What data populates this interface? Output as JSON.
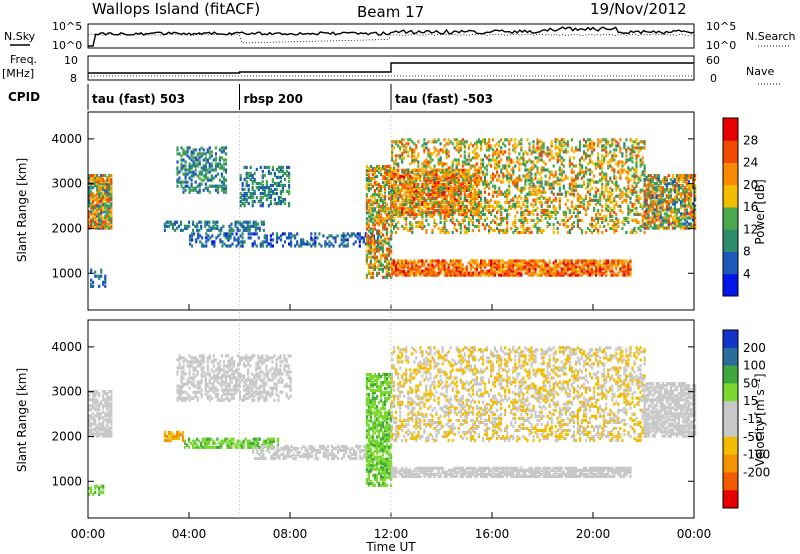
{
  "header": {
    "title": "Wallops Island (fitACF)",
    "beam": "Beam 17",
    "date": "19/Nov/2012"
  },
  "top_panels": {
    "nsky_label": "N.Sky",
    "nsearch_label": "N.Search",
    "nsky_ticks": [
      "10^5",
      "10^0"
    ],
    "nsearch_ticks": [
      "10^5",
      "10^0"
    ],
    "freq_label_line1": "Freq.",
    "freq_label_line2": "[MHz]",
    "freq_ticks": [
      "10",
      "8"
    ],
    "nave_label": "Nave",
    "nave_ticks": [
      "60",
      "0"
    ],
    "cpid_label": "CPID"
  },
  "cpid_segments": [
    {
      "label": "tau (fast) 503",
      "start": 0,
      "end": 6
    },
    {
      "label": "rbsp 200",
      "start": 6,
      "end": 12
    },
    {
      "label": "tau (fast) -503",
      "start": 12,
      "end": 24
    }
  ],
  "colors": {
    "power_scale": [
      "#0016e8",
      "#1e58b8",
      "#2c8c6e",
      "#4aa84e",
      "#f2bc00",
      "#f78a00",
      "#f24a00",
      "#e80000"
    ],
    "velocity_scale": [
      "#e80000",
      "#f25a00",
      "#f49200",
      "#f2bc00",
      "#c8c8c8",
      "#c8c8c8",
      "#7ad830",
      "#3fa83c",
      "#2a6c9c",
      "#1234c8"
    ]
  },
  "chart_data": [
    {
      "type": "heatmap",
      "name": "power-panel",
      "xlabel": "",
      "ylabel": "Slant Range [km]",
      "x_range": [
        0,
        24
      ],
      "y_range": [
        180,
        4600
      ],
      "y_ticks": [
        1000,
        2000,
        3000,
        4000
      ],
      "colorbar": {
        "label": "Power [dB]",
        "ticks": [
          4,
          8,
          12,
          16,
          20,
          24,
          28
        ],
        "range": [
          0,
          32
        ]
      },
      "scatter_bands": [
        {
          "t0": 0.0,
          "t1": 0.9,
          "r0": 2000,
          "r1": 3200,
          "lo": 6,
          "hi": 28,
          "d": 0.75
        },
        {
          "t0": 0.0,
          "t1": 0.7,
          "r0": 700,
          "r1": 1100,
          "lo": 4,
          "hi": 12,
          "d": 0.35
        },
        {
          "t0": 3.5,
          "t1": 5.5,
          "r0": 2800,
          "r1": 3800,
          "lo": 4,
          "hi": 16,
          "d": 0.45
        },
        {
          "t0": 6.0,
          "t1": 8.0,
          "r0": 2500,
          "r1": 3400,
          "lo": 4,
          "hi": 16,
          "d": 0.4
        },
        {
          "t0": 3.0,
          "t1": 7.0,
          "r0": 1950,
          "r1": 2150,
          "lo": 4,
          "hi": 12,
          "d": 0.45
        },
        {
          "t0": 4.0,
          "t1": 11.5,
          "r0": 1600,
          "r1": 1900,
          "lo": 3,
          "hi": 10,
          "d": 0.4
        },
        {
          "t0": 11.0,
          "t1": 12.0,
          "r0": 900,
          "r1": 3400,
          "lo": 8,
          "hi": 28,
          "d": 0.55
        },
        {
          "t0": 12.0,
          "t1": 21.5,
          "r0": 950,
          "r1": 1300,
          "lo": 18,
          "hi": 30,
          "d": 0.75
        },
        {
          "t0": 12.0,
          "t1": 15.5,
          "r0": 2300,
          "r1": 3300,
          "lo": 18,
          "hi": 30,
          "d": 0.6
        },
        {
          "t0": 12.0,
          "t1": 22.0,
          "r0": 1900,
          "r1": 4000,
          "lo": 10,
          "hi": 26,
          "d": 0.35
        },
        {
          "t0": 22.0,
          "t1": 24.0,
          "r0": 2000,
          "r1": 3200,
          "lo": 6,
          "hi": 28,
          "d": 0.7
        }
      ]
    },
    {
      "type": "heatmap",
      "name": "velocity-panel",
      "xlabel": "Time UT",
      "ylabel": "Slant Range [km]",
      "x_range": [
        0,
        24
      ],
      "y_range": [
        180,
        4600
      ],
      "y_ticks": [
        1000,
        2000,
        3000,
        4000
      ],
      "x_ticks": [
        "00:00",
        "04:00",
        "08:00",
        "12:00",
        "16:00",
        "20:00",
        "00:00"
      ],
      "colorbar": {
        "label": "Velocity [m s⁻¹]",
        "ticks": [
          200,
          100,
          50,
          15,
          -15,
          -50,
          -100,
          -200
        ]
      },
      "scatter_bands": [
        {
          "t0": 0.0,
          "t1": 0.9,
          "r0": 2000,
          "r1": 3000,
          "lo": -15,
          "hi": 15,
          "d": 0.6
        },
        {
          "t0": 0.0,
          "t1": 0.6,
          "r0": 700,
          "r1": 900,
          "lo": 20,
          "hi": 60,
          "d": 0.4
        },
        {
          "t0": 3.0,
          "t1": 3.8,
          "r0": 1900,
          "r1": 2100,
          "lo": -80,
          "hi": -30,
          "d": 0.7
        },
        {
          "t0": 3.8,
          "t1": 7.5,
          "r0": 1750,
          "r1": 1950,
          "lo": 20,
          "hi": 60,
          "d": 0.6
        },
        {
          "t0": 3.5,
          "t1": 8.0,
          "r0": 2800,
          "r1": 3800,
          "lo": -15,
          "hi": 15,
          "d": 0.45
        },
        {
          "t0": 6.5,
          "t1": 11.0,
          "r0": 1500,
          "r1": 1800,
          "lo": -15,
          "hi": 15,
          "d": 0.5
        },
        {
          "t0": 11.0,
          "t1": 12.0,
          "r0": 900,
          "r1": 3400,
          "lo": 20,
          "hi": 60,
          "d": 0.6
        },
        {
          "t0": 12.0,
          "t1": 21.5,
          "r0": 1100,
          "r1": 1300,
          "lo": -15,
          "hi": 15,
          "d": 0.75
        },
        {
          "t0": 12.0,
          "t1": 22.0,
          "r0": 1900,
          "r1": 4000,
          "lo": -40,
          "hi": 15,
          "d": 0.35
        },
        {
          "t0": 22.0,
          "t1": 24.0,
          "r0": 2000,
          "r1": 3200,
          "lo": -15,
          "hi": 15,
          "d": 0.7
        }
      ]
    }
  ]
}
